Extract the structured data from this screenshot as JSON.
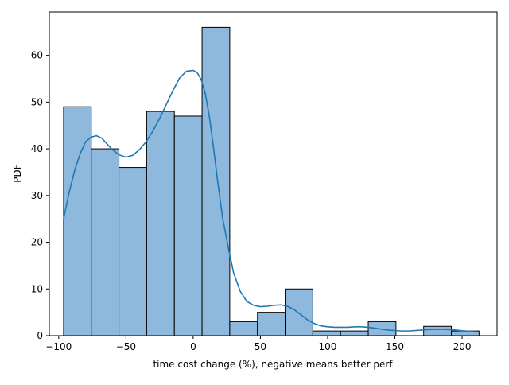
{
  "chart_data": {
    "type": "bar",
    "subtype": "histogram with kde",
    "xlabel": "time cost change (%), negative means better perf",
    "ylabel": "PDF",
    "xlim": [
      -107,
      226
    ],
    "ylim": [
      0,
      69.3
    ],
    "xticks": [
      -100,
      -50,
      0,
      50,
      100,
      150,
      200
    ],
    "xtick_labels": [
      "−100",
      "−50",
      "0",
      "50",
      "100",
      "150",
      "200"
    ],
    "yticks": [
      0,
      10,
      20,
      30,
      40,
      50,
      60
    ],
    "ytick_labels": [
      "0",
      "10",
      "20",
      "30",
      "40",
      "50",
      "60"
    ],
    "grid": false,
    "bar_color": "#8fb9dc",
    "edge_color": "#000000",
    "kde_color": "#1f77b4",
    "bins": [
      {
        "x0": -96.4,
        "x1": -75.8,
        "count": 49
      },
      {
        "x0": -75.8,
        "x1": -55.2,
        "count": 40
      },
      {
        "x0": -55.2,
        "x1": -34.6,
        "count": 36
      },
      {
        "x0": -34.6,
        "x1": -14.0,
        "count": 48
      },
      {
        "x0": -14.0,
        "x1": 6.6,
        "count": 47
      },
      {
        "x0": 6.6,
        "x1": 27.2,
        "count": 66
      },
      {
        "x0": 27.2,
        "x1": 47.8,
        "count": 3
      },
      {
        "x0": 47.8,
        "x1": 68.4,
        "count": 5
      },
      {
        "x0": 68.4,
        "x1": 89.0,
        "count": 10
      },
      {
        "x0": 89.0,
        "x1": 109.6,
        "count": 1
      },
      {
        "x0": 109.6,
        "x1": 130.2,
        "count": 1
      },
      {
        "x0": 130.2,
        "x1": 150.8,
        "count": 3
      },
      {
        "x0": 150.8,
        "x1": 171.4,
        "count": 0
      },
      {
        "x0": 171.4,
        "x1": 192.0,
        "count": 2
      },
      {
        "x0": 192.0,
        "x1": 212.6,
        "count": 1
      }
    ],
    "kde": {
      "x": [
        -96.4,
        -92,
        -88,
        -84,
        -80,
        -76,
        -72,
        -68,
        -64,
        -60,
        -55,
        -50,
        -45,
        -40,
        -35,
        -30,
        -25,
        -20,
        -15,
        -10,
        -5,
        0,
        3,
        6,
        9,
        12,
        15,
        18,
        22,
        26,
        30,
        35,
        40,
        45,
        50,
        55,
        60,
        65,
        70,
        75,
        80,
        85,
        90,
        95,
        100,
        105,
        110,
        115,
        120,
        125,
        130,
        135,
        140,
        145,
        150,
        155,
        160,
        165,
        170,
        175,
        180,
        185,
        190,
        195,
        200,
        205,
        210
      ],
      "y": [
        25,
        31,
        35.5,
        39,
        41.5,
        42.5,
        42.8,
        42.3,
        41,
        39.8,
        38.7,
        38.2,
        38.6,
        39.8,
        41.5,
        43.8,
        46.5,
        49.5,
        52.5,
        55.2,
        56.6,
        56.8,
        56.3,
        54.8,
        51.8,
        47,
        40.5,
        33.5,
        25,
        19,
        13.5,
        9.5,
        7.3,
        6.5,
        6.2,
        6.3,
        6.5,
        6.6,
        6.3,
        5.6,
        4.5,
        3.4,
        2.6,
        2.1,
        1.9,
        1.8,
        1.8,
        1.8,
        1.9,
        1.9,
        1.8,
        1.6,
        1.4,
        1.2,
        1.1,
        1,
        1,
        1.1,
        1.2,
        1.3,
        1.35,
        1.35,
        1.3,
        1.2,
        1.05,
        0.95,
        0.85
      ]
    }
  }
}
